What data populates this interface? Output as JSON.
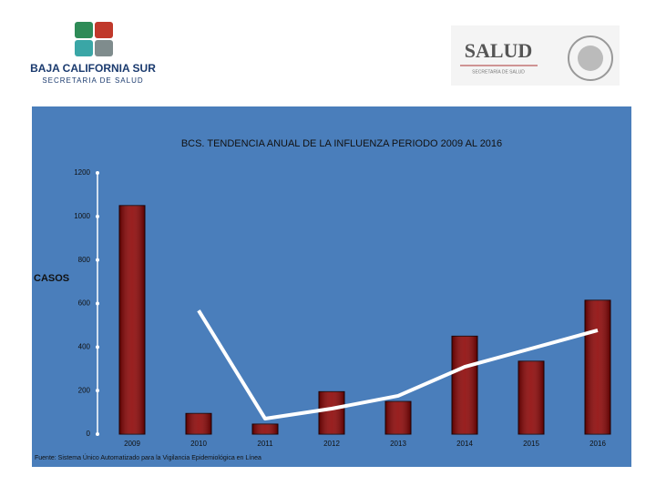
{
  "header": {
    "left_logo_title": "BAJA CALIFORNIA SUR",
    "left_logo_subtitle": "SECRETARIA DE SALUD",
    "right_logo_title": "SALUD",
    "right_logo_subtitle": "SECRETARÍA DE SALUD"
  },
  "chart_data": {
    "type": "bar",
    "title": "BCS. TENDENCIA ANUAL  DE LA INFLUENZA PERIODO 2009 AL 2016",
    "y_label": "CASOS",
    "categories": [
      "2009",
      "2010",
      "2011",
      "2012",
      "2013",
      "2014",
      "2015",
      "2016"
    ],
    "series": [
      {
        "type": "bar",
        "color": "#8b0000",
        "values": [
          1050,
          95,
          46,
          195,
          150,
          450,
          335,
          615
        ]
      },
      {
        "type": "line",
        "color": "#ffffff",
        "values": [
          null,
          568,
          71,
          117,
          176,
          309,
          393,
          477
        ]
      }
    ],
    "ylim": [
      0,
      1200
    ],
    "yticks": [
      0,
      200,
      400,
      600,
      800,
      1000,
      1200
    ],
    "grid": false,
    "source": "Fuente: Sistema Único Automatizado para la Vigilancia Epidemiológica en Línea"
  }
}
